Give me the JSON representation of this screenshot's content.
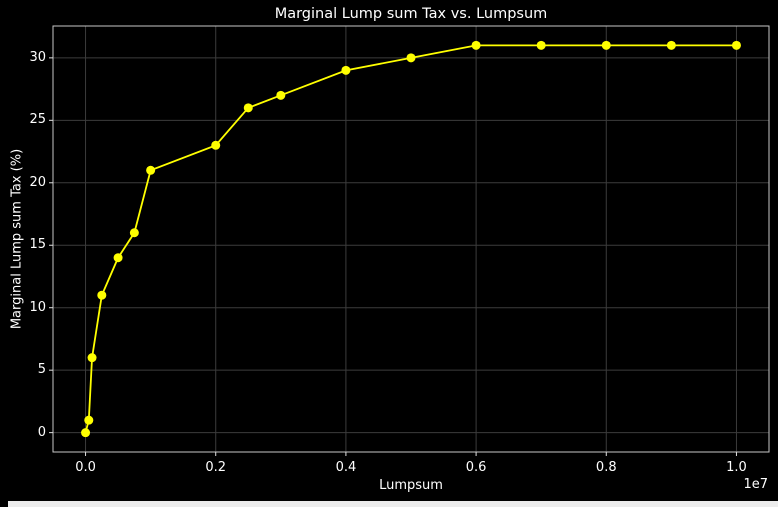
{
  "window": {
    "background": "#000000",
    "bottom_strip_color": "#ececec"
  },
  "chart_data": {
    "type": "line",
    "title": "Marginal Lump sum Tax vs. Lumpsum",
    "xlabel": "Lumpsum",
    "ylabel": "Marginal Lump sum Tax (%)",
    "x_offset_label": "1e7",
    "series": [
      {
        "name": "Marginal Lump sum Tax",
        "x": [
          0,
          50000,
          100000,
          250000,
          500000,
          750000,
          1000000,
          2000000,
          2500000,
          3000000,
          4000000,
          5000000,
          6000000,
          7000000,
          8000000,
          9000000,
          10000000
        ],
        "y": [
          0,
          1,
          6,
          11,
          14,
          16,
          21,
          23,
          26,
          27,
          29,
          30,
          31,
          31,
          31,
          31,
          31
        ]
      }
    ],
    "xlim": [
      -500000,
      10500000
    ],
    "ylim": [
      -1.55,
      32.55
    ],
    "x_ticks": {
      "values": [
        0,
        2000000,
        4000000,
        6000000,
        8000000,
        10000000
      ],
      "labels": [
        "0.0",
        "0.2",
        "0.4",
        "0.6",
        "0.8",
        "1.0"
      ]
    },
    "y_ticks": {
      "values": [
        0,
        5,
        10,
        15,
        20,
        25,
        30
      ],
      "labels": [
        "0",
        "5",
        "10",
        "15",
        "20",
        "25",
        "30"
      ]
    },
    "grid": true,
    "legend_visible": false,
    "marker": "circle",
    "colors": {
      "line": "#ffff00",
      "text": "#ffffff",
      "grid": "#3c3c3c",
      "spine": "#c8c8c8",
      "tick": "#e0e0e0",
      "background": "#000000"
    }
  }
}
